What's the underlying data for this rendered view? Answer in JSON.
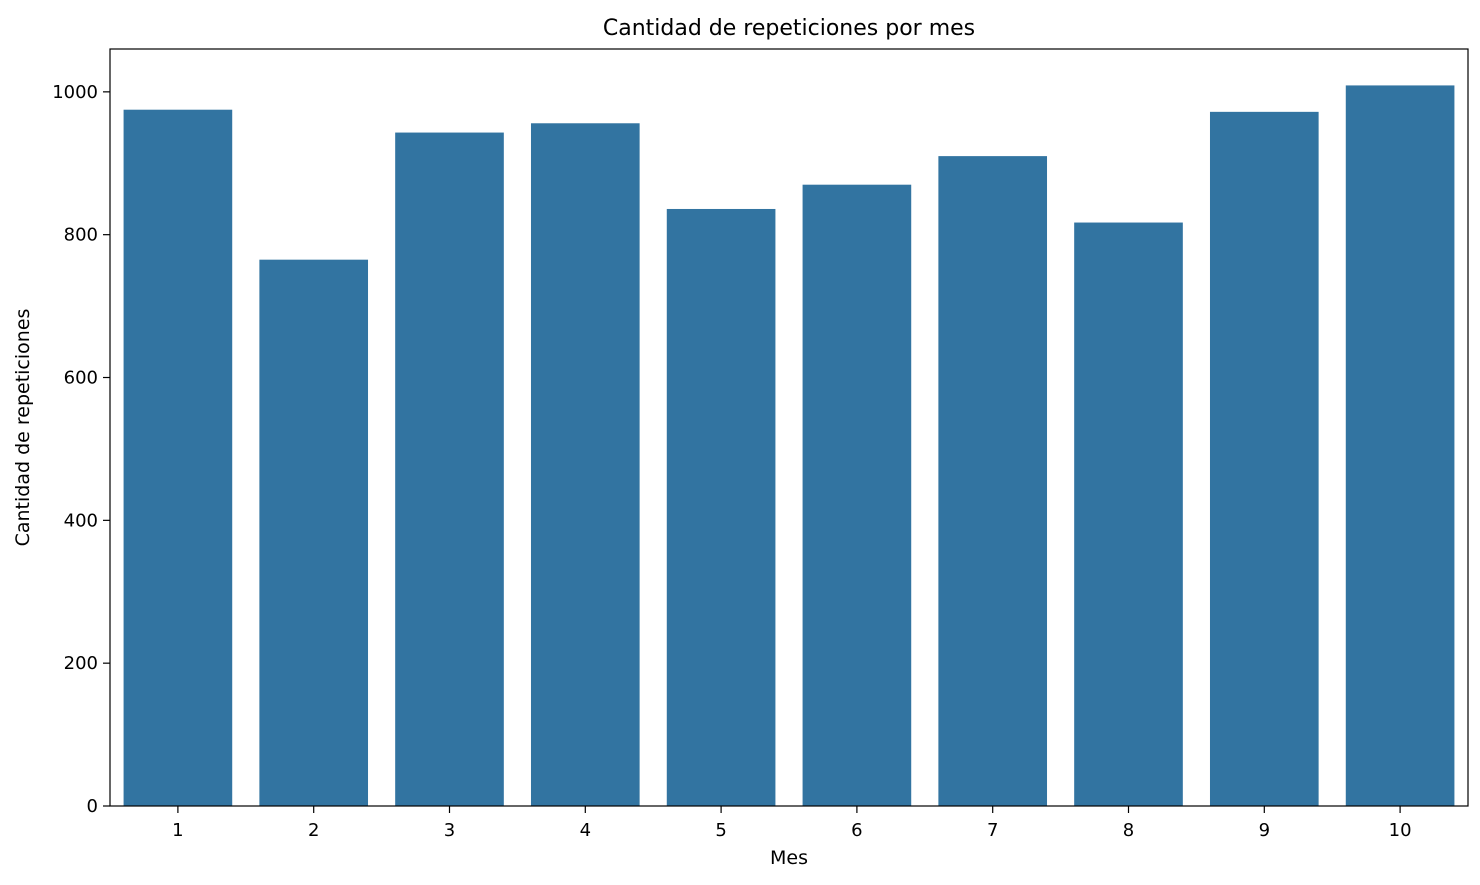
{
  "chart_data": {
    "type": "bar",
    "title": "Cantidad de repeticiones por mes",
    "xlabel": "Mes",
    "ylabel": "Cantidad de repeticiones",
    "categories": [
      "1",
      "2",
      "3",
      "4",
      "5",
      "6",
      "7",
      "8",
      "9",
      "10"
    ],
    "values": [
      975,
      765,
      943,
      956,
      836,
      870,
      910,
      817,
      972,
      1009
    ],
    "ylim": [
      0,
      1060
    ],
    "yticks": [
      0,
      200,
      400,
      600,
      800,
      1000
    ],
    "grid": false,
    "legend": "none",
    "bar_color": "#3274a1"
  }
}
